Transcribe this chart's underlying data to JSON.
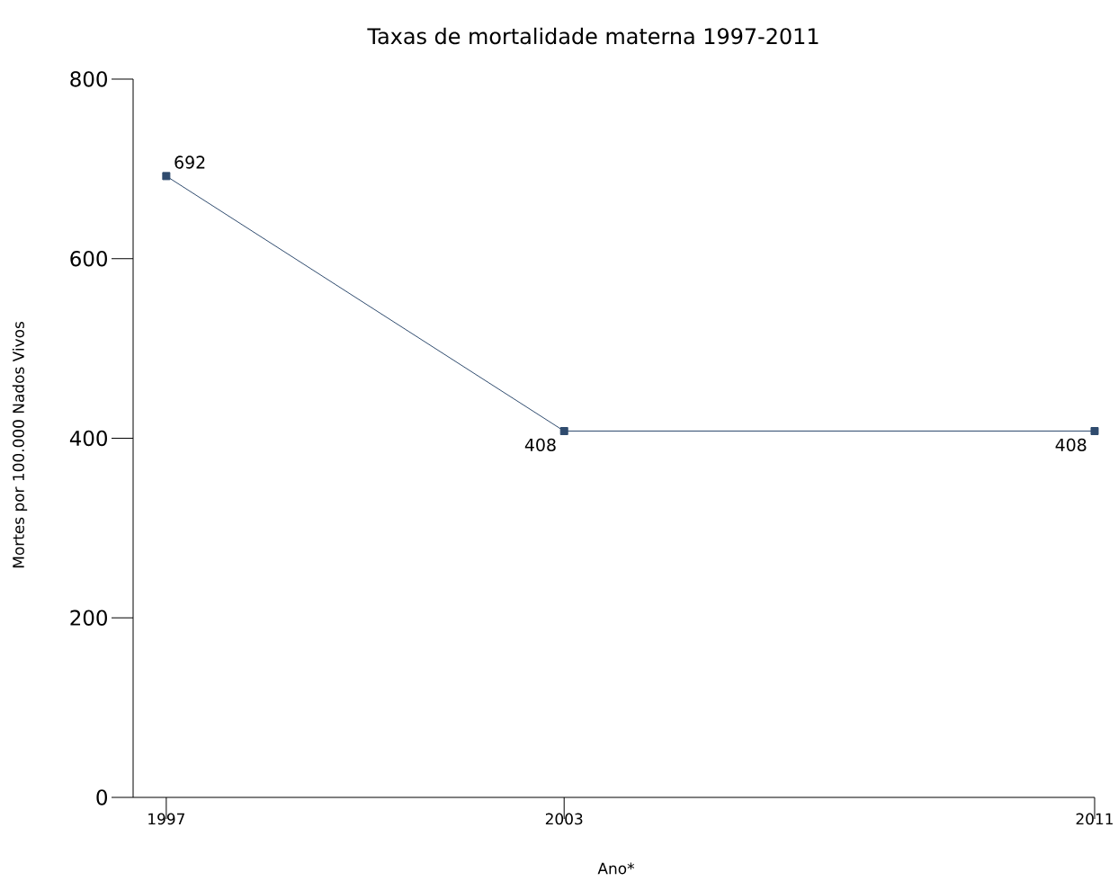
{
  "chart_data": {
    "type": "line",
    "title": "Taxas de mortalidade materna 1997-2011",
    "xlabel": "Ano*",
    "ylabel": "Mortes por 100.000 Nados Vivos",
    "x": [
      1997,
      2003,
      2011
    ],
    "series": [
      {
        "color": "#2f4b6e",
        "values": [
          692,
          408,
          408
        ]
      }
    ],
    "xlim": [
      1996.5,
      2011
    ],
    "xticks": [
      1997,
      2003,
      2011
    ],
    "ylim": [
      0,
      800
    ],
    "yticks": [
      0,
      200,
      400,
      600,
      800
    ],
    "data_labels": true,
    "marker": "square",
    "line_style": "solid",
    "grid": false
  }
}
